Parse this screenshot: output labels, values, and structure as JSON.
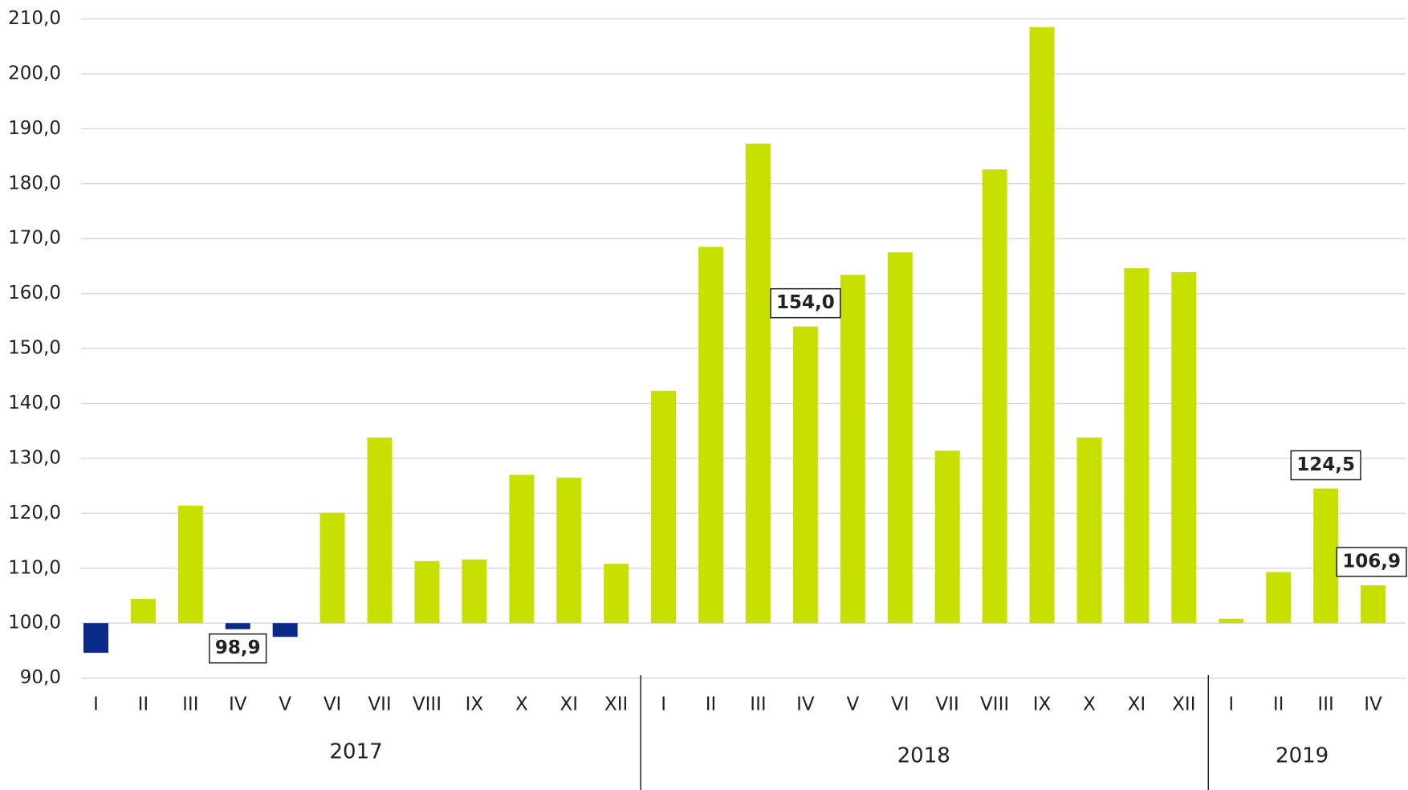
{
  "chart_data": {
    "type": "bar",
    "groups": [
      {
        "label": "2017",
        "categories": [
          "I",
          "II",
          "III",
          "IV",
          "V",
          "VI",
          "VII",
          "VIII",
          "IX",
          "X",
          "XI",
          "XII"
        ]
      },
      {
        "label": "2018",
        "categories": [
          "I",
          "II",
          "III",
          "IV",
          "V",
          "VI",
          "VII",
          "VIII",
          "IX",
          "X",
          "XI",
          "XII"
        ]
      },
      {
        "label": "2019",
        "categories": [
          "I",
          "II",
          "III",
          "IV"
        ]
      }
    ],
    "values": [
      94.6,
      104.4,
      121.4,
      98.9,
      97.5,
      120.1,
      133.8,
      111.3,
      111.6,
      127.0,
      126.5,
      110.8,
      142.3,
      168.5,
      187.3,
      154.0,
      163.4,
      167.5,
      131.4,
      182.6,
      208.5,
      133.8,
      164.6,
      163.9,
      100.8,
      109.3,
      124.5,
      106.9
    ],
    "value_labels": [
      null,
      null,
      null,
      "98,9",
      null,
      null,
      null,
      null,
      null,
      null,
      null,
      null,
      null,
      null,
      null,
      "154,0",
      null,
      null,
      null,
      null,
      null,
      null,
      null,
      null,
      null,
      null,
      "124,5",
      "106,9"
    ],
    "colors": [
      "#0a2a8a",
      "#c8e000",
      "#c8e000",
      "#0a2a8a",
      "#0a2a8a",
      "#c8e000",
      "#c8e000",
      "#c8e000",
      "#c8e000",
      "#c8e000",
      "#c8e000",
      "#c8e000",
      "#c8e000",
      "#c8e000",
      "#c8e000",
      "#c8e000",
      "#c8e000",
      "#c8e000",
      "#c8e000",
      "#c8e000",
      "#c8e000",
      "#c8e000",
      "#c8e000",
      "#c8e000",
      "#c8e000",
      "#c8e000",
      "#c8e000",
      "#c8e000"
    ],
    "baseline": 100,
    "ylim": [
      90,
      210
    ],
    "yticks": [
      {
        "value": 90,
        "label": "90,0"
      },
      {
        "value": 100,
        "label": "100,0"
      },
      {
        "value": 110,
        "label": "110,0"
      },
      {
        "value": 120,
        "label": "120,0"
      },
      {
        "value": 130,
        "label": "130,0"
      },
      {
        "value": 140,
        "label": "140,0"
      },
      {
        "value": 150,
        "label": "150,0"
      },
      {
        "value": 160,
        "label": "160,0"
      },
      {
        "value": 170,
        "label": "170,0"
      },
      {
        "value": 180,
        "label": "180,0"
      },
      {
        "value": 190,
        "label": "190,0"
      },
      {
        "value": 200,
        "label": "200,0"
      },
      {
        "value": 210,
        "label": "210,0"
      }
    ],
    "grid": true
  }
}
